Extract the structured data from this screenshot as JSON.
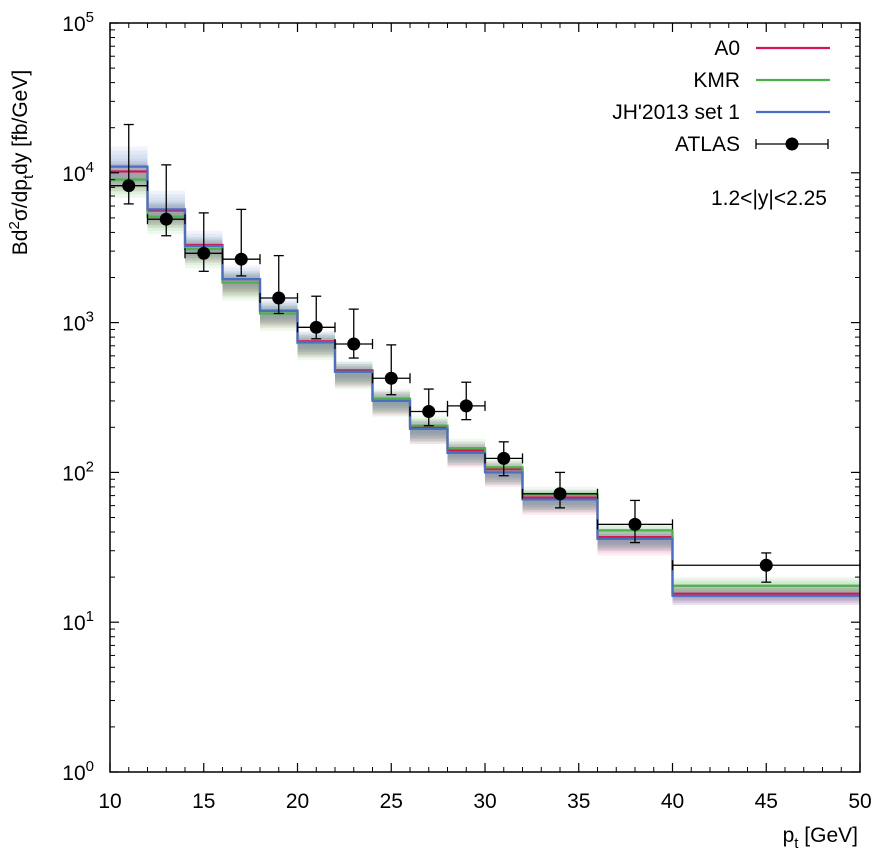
{
  "chart_data": {
    "type": "line",
    "title": "",
    "xlabel_main": "p",
    "xlabel_sub": "t",
    "xlabel_unit": " [GeV]",
    "ylabel_parts": [
      "Bd",
      "2",
      "σ/dp",
      "t",
      "dy [fb/GeV]"
    ],
    "xlim": [
      10,
      50
    ],
    "ylim_log10": [
      0,
      5
    ],
    "xticks": [
      10,
      15,
      20,
      25,
      30,
      35,
      40,
      45,
      50
    ],
    "yticks": [
      {
        "base": "10",
        "exp": "0"
      },
      {
        "base": "10",
        "exp": "1"
      },
      {
        "base": "10",
        "exp": "2"
      },
      {
        "base": "10",
        "exp": "3"
      },
      {
        "base": "10",
        "exp": "4"
      },
      {
        "base": "10",
        "exp": "5"
      }
    ],
    "annotation": "1.2<|y|<2.25",
    "bin_edges": [
      10,
      12,
      14,
      16,
      18,
      20,
      22,
      24,
      26,
      28,
      30,
      32,
      36,
      40,
      50
    ],
    "series": [
      {
        "name": "A0",
        "color": "#d6144f",
        "band_color": "#d6336b",
        "values": [
          10200,
          5600,
          3300,
          1950,
          1200,
          750,
          480,
          310,
          200,
          140,
          105,
          68,
          37,
          15.5
        ],
        "band_low": [
          7500,
          4300,
          2500,
          1500,
          930,
          590,
          370,
          240,
          155,
          108,
          80,
          52,
          28,
          13
        ],
        "band_high": [
          12000,
          6300,
          3600,
          2150,
          1300,
          830,
          530,
          345,
          225,
          160,
          118,
          76,
          42,
          18
        ]
      },
      {
        "name": "KMR",
        "color": "#4cb04c",
        "band_color": "#5cbf5c",
        "values": [
          9000,
          5100,
          3100,
          1850,
          1150,
          730,
          470,
          310,
          205,
          145,
          108,
          71,
          41,
          17.5
        ],
        "band_low": [
          6800,
          3900,
          2300,
          1400,
          880,
          560,
          360,
          235,
          155,
          110,
          82,
          54,
          30,
          14
        ],
        "band_high": [
          11500,
          6300,
          3700,
          2200,
          1350,
          860,
          550,
          360,
          240,
          168,
          125,
          80,
          46,
          20
        ]
      },
      {
        "name": "JH'2013 set 1",
        "color": "#4a6ec0",
        "band_color": "#6f8fd0",
        "values": [
          11000,
          5700,
          3250,
          1950,
          1200,
          740,
          470,
          300,
          195,
          135,
          100,
          66,
          36,
          15
        ],
        "band_low": [
          8000,
          4500,
          2600,
          1600,
          980,
          610,
          385,
          250,
          160,
          112,
          83,
          55,
          30,
          13
        ],
        "band_high": [
          15000,
          7600,
          4100,
          2400,
          1450,
          880,
          550,
          350,
          225,
          155,
          115,
          75,
          41,
          17
        ]
      },
      {
        "name": "ATLAS",
        "color": "#000000",
        "points": [
          {
            "x": 11,
            "xerr": 1,
            "y": 8200,
            "ylo": 6200,
            "yhi": 21000
          },
          {
            "x": 13,
            "xerr": 1,
            "y": 4900,
            "ylo": 3800,
            "yhi": 11300
          },
          {
            "x": 15,
            "xerr": 1,
            "y": 2900,
            "ylo": 2200,
            "yhi": 5400
          },
          {
            "x": 17,
            "xerr": 1,
            "y": 2650,
            "ylo": 2050,
            "yhi": 5700
          },
          {
            "x": 19,
            "xerr": 1,
            "y": 1460,
            "ylo": 1150,
            "yhi": 2800
          },
          {
            "x": 21,
            "xerr": 1,
            "y": 930,
            "ylo": 780,
            "yhi": 1500
          },
          {
            "x": 23,
            "xerr": 1,
            "y": 720,
            "ylo": 580,
            "yhi": 1230
          },
          {
            "x": 25,
            "xerr": 1,
            "y": 425,
            "ylo": 330,
            "yhi": 710
          },
          {
            "x": 27,
            "xerr": 1,
            "y": 255,
            "ylo": 205,
            "yhi": 360
          },
          {
            "x": 29,
            "xerr": 1,
            "y": 278,
            "ylo": 225,
            "yhi": 400
          },
          {
            "x": 31,
            "xerr": 1,
            "y": 124,
            "ylo": 95,
            "yhi": 160
          },
          {
            "x": 34,
            "xerr": 2,
            "y": 72,
            "ylo": 58,
            "yhi": 100
          },
          {
            "x": 38,
            "xerr": 2,
            "y": 45,
            "ylo": 34,
            "yhi": 65
          },
          {
            "x": 45,
            "xerr": 5,
            "y": 24,
            "ylo": 18.5,
            "yhi": 29
          }
        ]
      }
    ],
    "legend_position": "top-right"
  }
}
